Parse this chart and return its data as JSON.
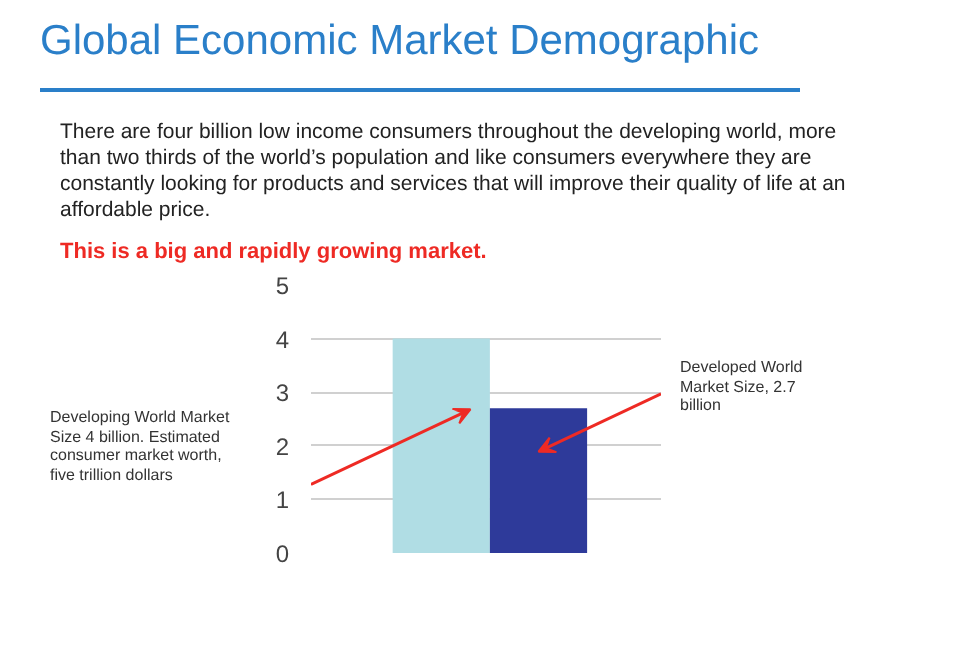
{
  "chart_data": {
    "type": "bar",
    "title": "Global Economic Market Demographic",
    "annotations": [
      "There are four billion low income consumers throughout the developing world, more than two thirds of the world’s population and like consumers everywhere they are constantly looking for products and services that will improve their quality of life at an affordable price.",
      "This is a big and rapidly growing market.",
      "Developing World Market Size 4 billion. Estimated consumer market worth, five trillion dollars",
      "Developed World Market Size, 2.7 billion"
    ],
    "categories": [
      null,
      null
    ],
    "values": [
      4,
      2.7
    ],
    "colors": [
      "#b0dde4",
      "#2e3a9a"
    ],
    "ylim": [
      0,
      5
    ],
    "yticks": [
      0,
      1,
      2,
      3,
      4,
      5
    ],
    "grid": "y",
    "tick_labels": "y"
  }
}
